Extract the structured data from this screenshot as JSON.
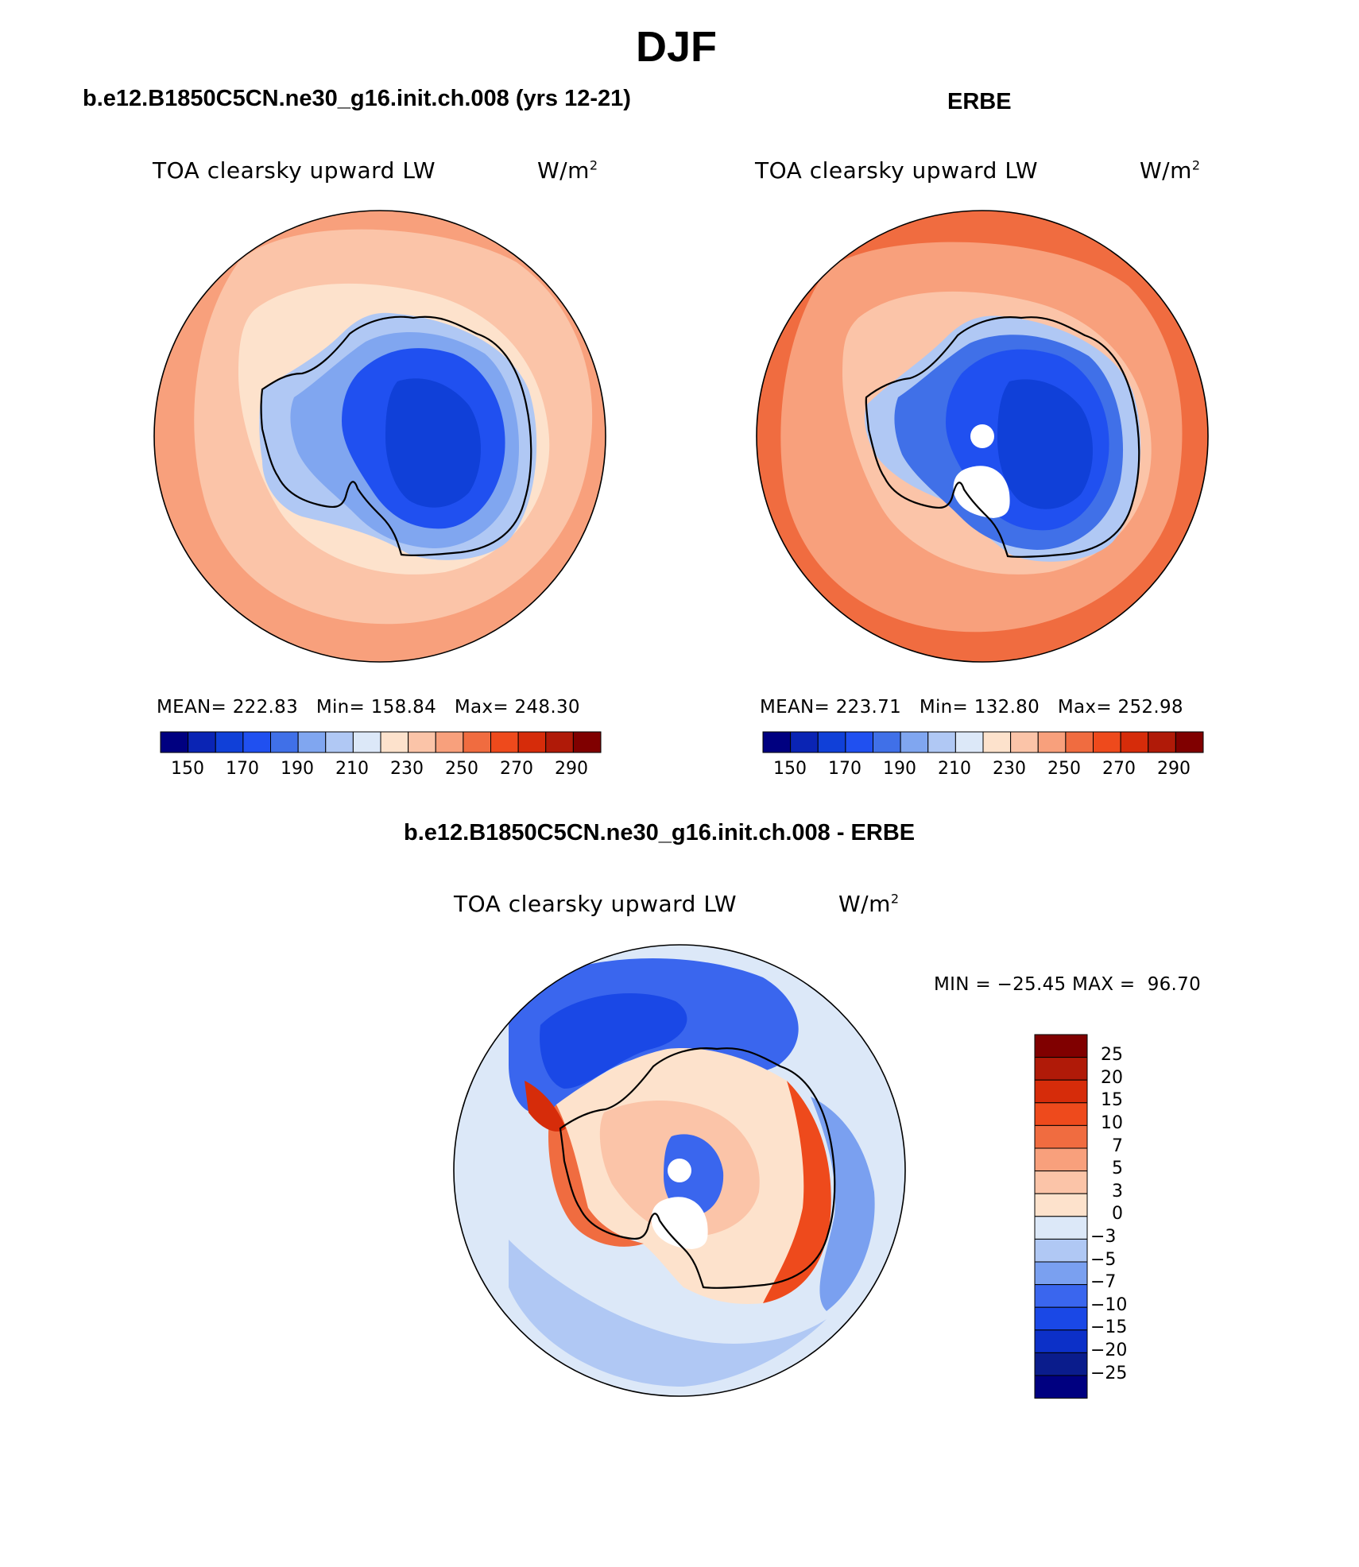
{
  "figure": {
    "title": "DJF",
    "colors": {
      "abs_levels": [
        "#000080",
        "#0a24b4",
        "#1040d8",
        "#2050f0",
        "#4070e8",
        "#80a6f0",
        "#b0c8f4",
        "#dce8f8",
        "#fde2cc",
        "#fbc4a8",
        "#f8a07c",
        "#f06c40",
        "#ee4a1c",
        "#d62c0a",
        "#b01a08",
        "#800000"
      ],
      "diff_levels": [
        "#000080",
        "#0a1c8c",
        "#0c30c8",
        "#1a48e6",
        "#3a66ee",
        "#7aa0f0",
        "#b0c8f4",
        "#dce8f8",
        "#fde2cc",
        "#fbc4a8",
        "#f8a07c",
        "#f06c40",
        "#ee4a1c",
        "#d62c0a",
        "#b01a08",
        "#800000"
      ]
    }
  },
  "panels": [
    {
      "heading": "b.e12.B1850C5CN.ne30_g16.init.ch.008 (yrs 12-21)",
      "variable": "TOA clearsky upward LW",
      "units_base": "W/m",
      "units_exp": "2",
      "mean_label": "MEAN=",
      "mean_value": "222.83",
      "min_label": "Min=",
      "min_value": "158.84",
      "max_label": "Max=",
      "max_value": "248.30",
      "colorbar_ticks": [
        "150",
        "170",
        "190",
        "210",
        "230",
        "250",
        "270",
        "290"
      ],
      "map_fields": {
        "ocean_outer": "#f8a07c",
        "ocean_mid": "#fbc4a8",
        "ocean_inner": "#fde2cc",
        "ice_rim": "#b0c8f4",
        "ice_mid": "#80a6f0",
        "plateau": "#2050f0",
        "plateau_core": "#1040d8"
      }
    },
    {
      "heading": "ERBE",
      "variable": "TOA clearsky upward LW",
      "units_base": "W/m",
      "units_exp": "2",
      "mean_label": "MEAN=",
      "mean_value": "223.71",
      "min_label": "Min=",
      "min_value": "132.80",
      "max_label": "Max=",
      "max_value": "252.98",
      "colorbar_ticks": [
        "150",
        "170",
        "190",
        "210",
        "230",
        "250",
        "270",
        "290"
      ],
      "map_fields": {
        "ocean_outer": "#f06c40",
        "ocean_mid": "#f8a07c",
        "ocean_inner": "#fbc4a8",
        "ice_rim": "#b0c8f4",
        "ice_mid": "#4070e8",
        "plateau": "#2050f0",
        "plateau_core": "#1040d8"
      }
    }
  ],
  "difference": {
    "heading": "b.e12.B1850C5CN.ne30_g16.init.ch.008 - ERBE",
    "variable": "TOA clearsky upward LW",
    "units_base": "W/m",
    "units_exp": "2",
    "minmax_text": "MIN = −25.45 MAX =  96.70",
    "colorbar_ticks": [
      "25",
      "20",
      "15",
      "10",
      "7",
      "5",
      "3",
      "0",
      "−3",
      "−5",
      "−7",
      "−10",
      "−15",
      "−20",
      "−25"
    ]
  }
}
